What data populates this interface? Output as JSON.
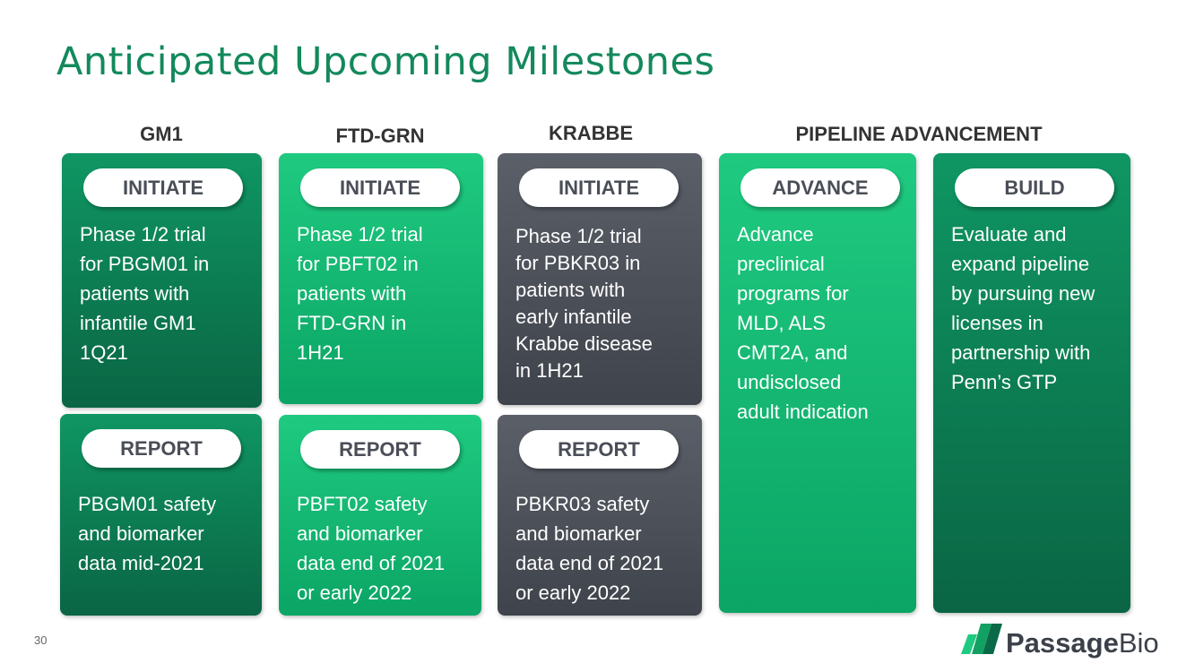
{
  "title": "Anticipated Upcoming Milestones",
  "headers": [
    "GM1",
    "FTD-GRN",
    "KRABBE",
    "PIPELINE ADVANCEMENT"
  ],
  "cards": [
    {
      "badge": "INITIATE",
      "lines": [
        "Phase 1/2 trial",
        "for PBGM01 in",
        "patients with",
        "infantile GM1",
        "1Q21"
      ]
    },
    {
      "badge": "INITIATE",
      "lines": [
        "Phase 1/2 trial",
        "for PBFT02 in",
        "patients with",
        "FTD-GRN in",
        "1H21"
      ]
    },
    {
      "badge": "INITIATE",
      "lines": [
        "Phase 1/2 trial",
        "for PBKR03 in",
        "patients with",
        "early infantile",
        "Krabbe disease",
        "in 1H21"
      ]
    },
    {
      "badge": "ADVANCE",
      "lines": [
        "Advance",
        "preclinical",
        "programs for",
        "MLD, ALS",
        "CMT2A, and",
        "undisclosed",
        "adult indication"
      ]
    },
    {
      "badge": "BUILD",
      "lines": [
        "Evaluate and",
        "expand pipeline",
        "by pursuing new",
        "licenses in",
        "partnership with",
        "Penn’s GTP"
      ]
    },
    {
      "badge": "REPORT",
      "lines": [
        "PBGM01 safety",
        "and biomarker",
        "data mid-2021"
      ]
    },
    {
      "badge": "REPORT",
      "lines": [
        "PBFT02 safety",
        "and biomarker",
        "data end of 2021",
        "or early 2022"
      ]
    },
    {
      "badge": "REPORT",
      "lines": [
        "PBKR03 safety",
        "and biomarker",
        "data end of 2021",
        "or early 2022"
      ]
    }
  ],
  "page_number": "30",
  "logo": {
    "text1": "Passage",
    "text2": "Bio"
  }
}
